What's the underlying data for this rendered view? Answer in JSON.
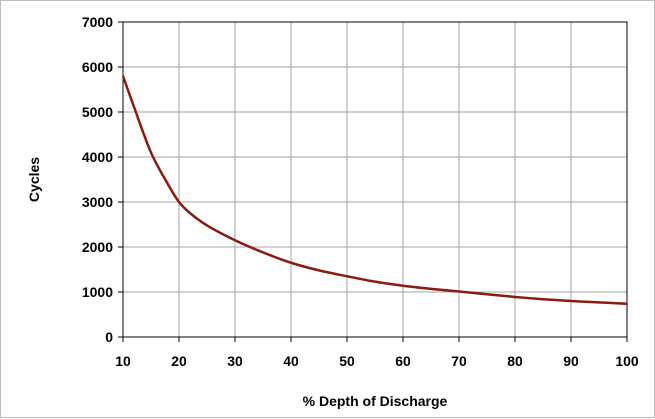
{
  "chart_data": {
    "type": "line",
    "title": "",
    "xlabel": "% Depth of Discharge",
    "ylabel": "Cycles",
    "xlim": [
      10,
      100
    ],
    "ylim": [
      0,
      7000
    ],
    "x_ticks": [
      10,
      20,
      30,
      40,
      50,
      60,
      70,
      80,
      90,
      100
    ],
    "y_ticks": [
      0,
      1000,
      2000,
      3000,
      4000,
      5000,
      6000,
      7000
    ],
    "grid": true,
    "legend": "none",
    "series": [
      {
        "color": "#8b1a10",
        "x": [
          10,
          12,
          15,
          18,
          20,
          22,
          25,
          30,
          35,
          40,
          45,
          50,
          55,
          60,
          65,
          70,
          75,
          80,
          85,
          90,
          95,
          100
        ],
        "y": [
          5800,
          5100,
          4100,
          3400,
          3000,
          2750,
          2480,
          2150,
          1880,
          1650,
          1480,
          1350,
          1230,
          1140,
          1070,
          1010,
          950,
          890,
          840,
          800,
          770,
          740
        ]
      }
    ]
  }
}
